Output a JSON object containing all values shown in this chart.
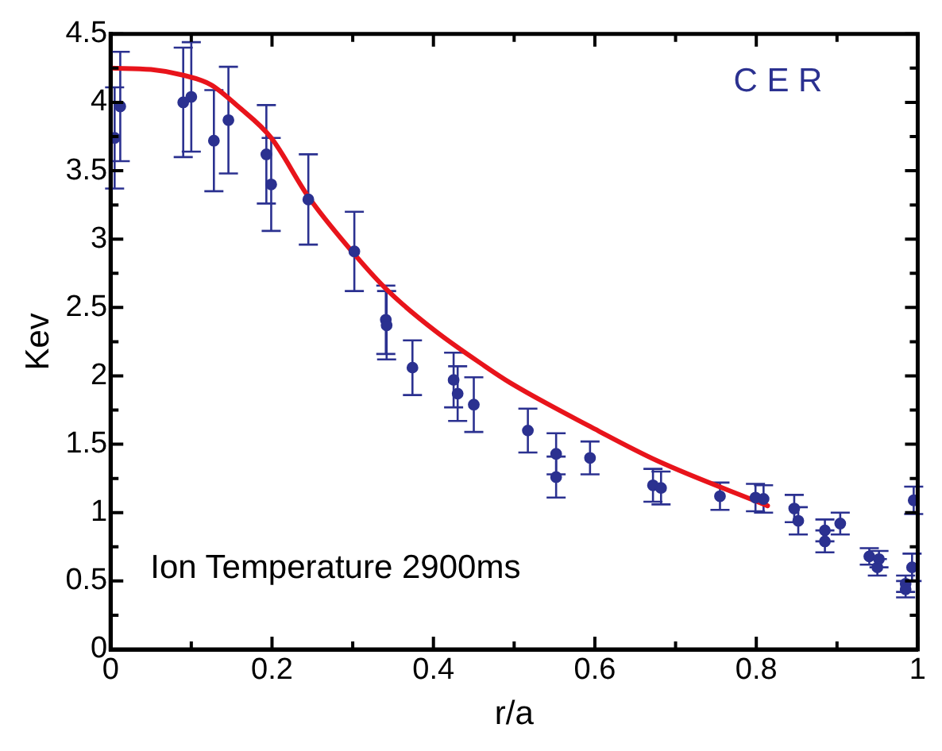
{
  "chart_data": {
    "type": "scatter",
    "xlabel": "r/a",
    "ylabel": "Kev",
    "annotations": [
      "C E R",
      "Ion Temperature 2900ms"
    ],
    "xlim": [
      0,
      1
    ],
    "ylim": [
      0,
      4.5
    ],
    "xticks": [
      0,
      {
        "value": 0.1,
        "label": null
      },
      0.2,
      {
        "value": 0.3,
        "label": null
      },
      0.4,
      {
        "value": 0.5,
        "label": null
      },
      0.6,
      {
        "value": 0.7,
        "label": null
      },
      0.8,
      {
        "value": 0.9,
        "label": null
      },
      1
    ],
    "yticks": [
      0,
      {
        "value": 0.25,
        "label": null
      },
      0.5,
      {
        "value": 0.75,
        "label": null
      },
      1,
      {
        "value": 1.25,
        "label": null
      },
      1.5,
      {
        "value": 1.75,
        "label": null
      },
      2,
      {
        "value": 2.25,
        "label": null
      },
      2.5,
      {
        "value": 2.75,
        "label": null
      },
      3,
      {
        "value": 3.25,
        "label": null
      },
      3.5,
      {
        "value": 3.75,
        "label": null
      },
      4,
      {
        "value": 4.25,
        "label": null
      },
      4.5
    ],
    "grid": false,
    "legend": false,
    "marker": "circle",
    "series": [
      {
        "type": "scatter",
        "color": "#2b3190",
        "x": [
          0.005,
          0.012,
          0.09,
          0.1,
          0.128,
          0.146,
          0.193,
          0.199,
          0.245,
          0.302,
          0.341,
          0.342,
          0.374,
          0.425,
          0.43,
          0.45,
          0.517,
          0.552,
          0.552,
          0.594,
          0.672,
          0.682,
          0.755,
          0.799,
          0.809,
          0.847,
          0.852,
          0.885,
          0.885,
          0.904,
          0.94,
          0.952,
          0.95,
          0.985,
          0.985,
          0.993,
          0.995
        ],
        "values": [
          3.74,
          3.97,
          4.0,
          4.04,
          3.72,
          3.87,
          3.62,
          3.4,
          3.29,
          2.91,
          2.41,
          2.37,
          2.06,
          1.97,
          1.87,
          1.79,
          1.6,
          1.43,
          1.26,
          1.4,
          1.2,
          1.18,
          1.12,
          1.11,
          1.1,
          1.03,
          0.94,
          0.87,
          0.79,
          0.92,
          0.68,
          0.66,
          0.6,
          0.48,
          0.44,
          0.6,
          1.09
        ],
        "errors": [
          0.37,
          0.4,
          0.4,
          0.4,
          0.37,
          0.39,
          0.36,
          0.34,
          0.33,
          0.29,
          0.25,
          0.25,
          0.2,
          0.2,
          0.2,
          0.2,
          0.16,
          0.15,
          0.15,
          0.12,
          0.12,
          0.12,
          0.1,
          0.1,
          0.1,
          0.1,
          0.1,
          0.08,
          0.08,
          0.08,
          0.06,
          0.06,
          0.06,
          0.06,
          0.06,
          0.1,
          0.1
        ]
      },
      {
        "type": "line",
        "color": "#e8141b",
        "marker": "none",
        "line_style": "solid",
        "x": [
          0,
          0.05,
          0.089,
          0.124,
          0.158,
          0.199,
          0.245,
          0.302,
          0.344,
          0.402,
          0.464,
          0.495,
          0.594,
          0.677,
          0.814
        ],
        "values": [
          4.25,
          4.24,
          4.2,
          4.13,
          3.97,
          3.74,
          3.31,
          2.89,
          2.62,
          2.33,
          2.07,
          1.95,
          1.63,
          1.38,
          1.05
        ]
      }
    ]
  }
}
